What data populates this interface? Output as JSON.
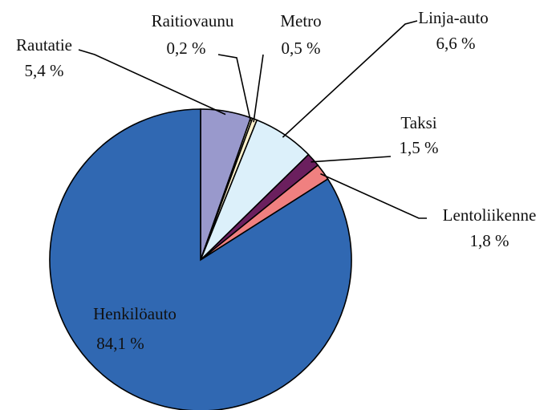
{
  "chart_data": {
    "type": "pie",
    "categories": [
      "Rautatie",
      "Raitiovaunu",
      "Metro",
      "Linja-auto",
      "Taksi",
      "Lentoliikenne",
      "Henkilöauto"
    ],
    "values": [
      5.4,
      0.2,
      0.5,
      6.6,
      1.5,
      1.8,
      84.1
    ],
    "value_labels": [
      "5,4 %",
      "0,2 %",
      "0,5 %",
      "6,6 %",
      "1,5 %",
      "1,8 %",
      "84,1 %"
    ],
    "colors": [
      "#9999cc",
      "#ffffcc",
      "#fff2cc",
      "#dcf0fa",
      "#6b1f5e",
      "#f08080",
      "#3068b2"
    ]
  }
}
